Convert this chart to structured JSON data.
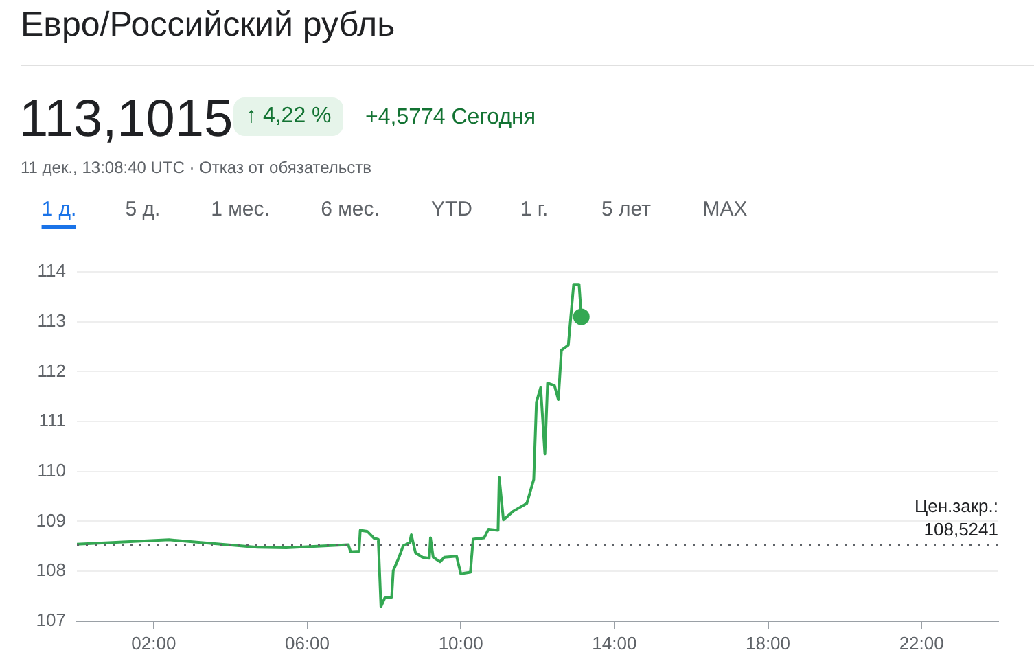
{
  "chart_data": {
    "type": "line",
    "title": "Евро/Российский рубль",
    "subtitle": "113,1015",
    "annotations": [
      "↑ 4,22 %",
      "+4,5774 Сегодня",
      "11 дек., 13:08:40 UTC · Отказ от обязательств",
      "1 д.",
      "5 д.",
      "1 мес.",
      "6 мес.",
      "YTD",
      "1 г.",
      "5 лет",
      "MAX"
    ],
    "x": [
      0,
      2.4,
      4.7,
      5.45,
      7.07,
      7.13,
      7.35,
      7.38,
      7.56,
      7.74,
      7.85,
      7.92,
      8.03,
      8.2,
      8.24,
      8.39,
      8.5,
      8.67,
      8.71,
      8.82,
      9.0,
      9.18,
      9.21,
      9.28,
      9.46,
      9.57,
      9.89,
      10.0,
      10.25,
      10.32,
      10.61,
      10.72,
      10.97,
      11.0,
      11.11,
      11.36,
      11.72,
      11.9,
      11.97,
      12.08,
      12.19,
      12.26,
      12.44,
      12.54,
      12.62,
      12.8,
      12.94,
      13.08,
      13.14
    ],
    "series": [
      {
        "color": "#34a853",
        "values": [
          108.54,
          108.63,
          108.48,
          108.47,
          108.53,
          108.39,
          108.4,
          108.82,
          108.8,
          108.66,
          108.64,
          107.29,
          107.48,
          107.48,
          108.01,
          108.28,
          108.51,
          108.57,
          108.73,
          108.37,
          108.28,
          108.26,
          108.67,
          108.28,
          108.19,
          108.28,
          108.3,
          107.95,
          107.98,
          108.64,
          108.67,
          108.84,
          108.82,
          109.88,
          109.03,
          109.2,
          109.36,
          109.84,
          111.39,
          111.68,
          110.35,
          111.77,
          111.72,
          111.44,
          112.43,
          112.53,
          113.75,
          113.75,
          113.1
        ]
      }
    ],
    "xlim": [
      0,
      24
    ],
    "xticks": [
      {
        "value": 2,
        "label": "02:00"
      },
      {
        "value": 6,
        "label": "06:00"
      },
      {
        "value": 10,
        "label": "10:00"
      },
      {
        "value": 14,
        "label": "14:00"
      },
      {
        "value": 18,
        "label": "18:00"
      },
      {
        "value": 22,
        "label": "22:00"
      }
    ],
    "ylim": [
      107,
      114
    ],
    "yticks": [
      107,
      108,
      109,
      110,
      111,
      112,
      113,
      114
    ],
    "ref_lines": [
      {
        "axis": "y",
        "value": 108.5241,
        "label": "Цен.закр.:\n108,5241",
        "color": "#5f6368",
        "line_style": "dotted"
      }
    ],
    "grid": "y",
    "legend": false
  }
}
